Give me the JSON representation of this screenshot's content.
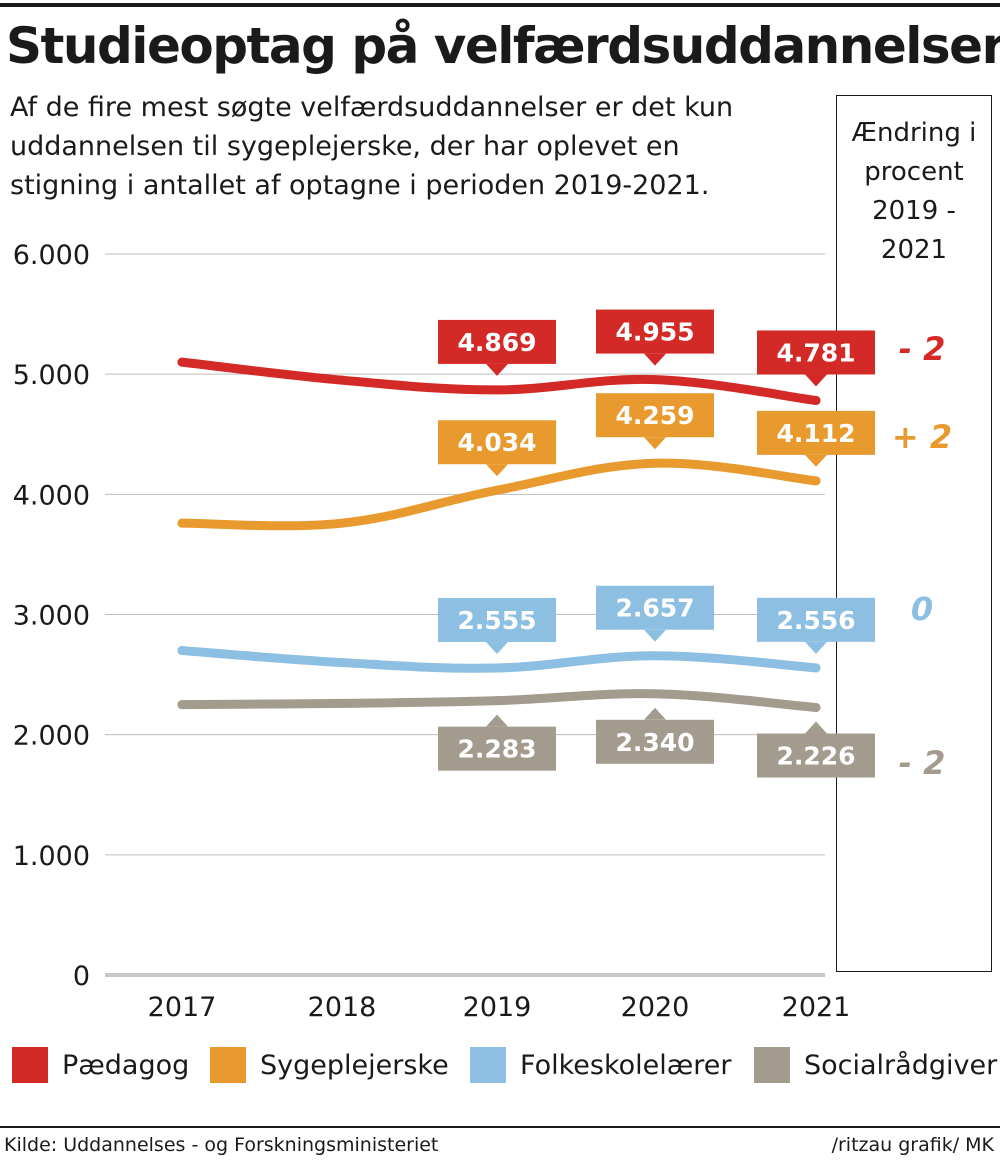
{
  "chart_data": {
    "type": "line",
    "title": "Studieoptag på velfærdsuddannelser",
    "subtitle": "Af de fire mest søgte velfærdsuddannelser er det kun uddannelsen til sygeplejerske, der har oplevet en stigning i antallet af optagne i perioden 2019-2021.",
    "categories": [
      "2017",
      "2018",
      "2019",
      "2020",
      "2021"
    ],
    "ylim": [
      0,
      6000
    ],
    "yticks": [
      0,
      1000,
      2000,
      3000,
      4000,
      5000,
      6000
    ],
    "ytick_labels": [
      "0",
      "1.000",
      "2.000",
      "3.000",
      "4.000",
      "5.000",
      "6.000"
    ],
    "grid": true,
    "change_header": "Ændring i procent 2019 - 2021",
    "series": [
      {
        "name": "Pædagog",
        "color": "#d42a27",
        "values": [
          5100,
          4950,
          4869,
          4955,
          4781
        ],
        "labels": {
          "2": "4.869",
          "3": "4.955",
          "4": "4.781"
        },
        "label_pos": "above",
        "change": "- 2"
      },
      {
        "name": "Sygeplejerske",
        "color": "#e99a2e",
        "values": [
          3760,
          3760,
          4034,
          4259,
          4112
        ],
        "labels": {
          "2": "4.034",
          "3": "4.259",
          "4": "4.112"
        },
        "label_pos": "above",
        "change": "+ 2"
      },
      {
        "name": "Folkeskolelærer",
        "color": "#8dbfe2",
        "values": [
          2700,
          2600,
          2555,
          2657,
          2556
        ],
        "labels": {
          "2": "2.555",
          "3": "2.657",
          "4": "2.556"
        },
        "label_pos": "above",
        "change": "0"
      },
      {
        "name": "Socialrådgiver",
        "color": "#a39c8e",
        "values": [
          2250,
          2260,
          2283,
          2340,
          2226
        ],
        "labels": {
          "2": "2.283",
          "3": "2.340",
          "4": "2.226"
        },
        "label_pos": "below",
        "change": "- 2"
      }
    ]
  },
  "footer": {
    "source": "Kilde: Uddannelses - og Forskningsministeriet",
    "credit": "/ritzau grafik/ MK"
  }
}
